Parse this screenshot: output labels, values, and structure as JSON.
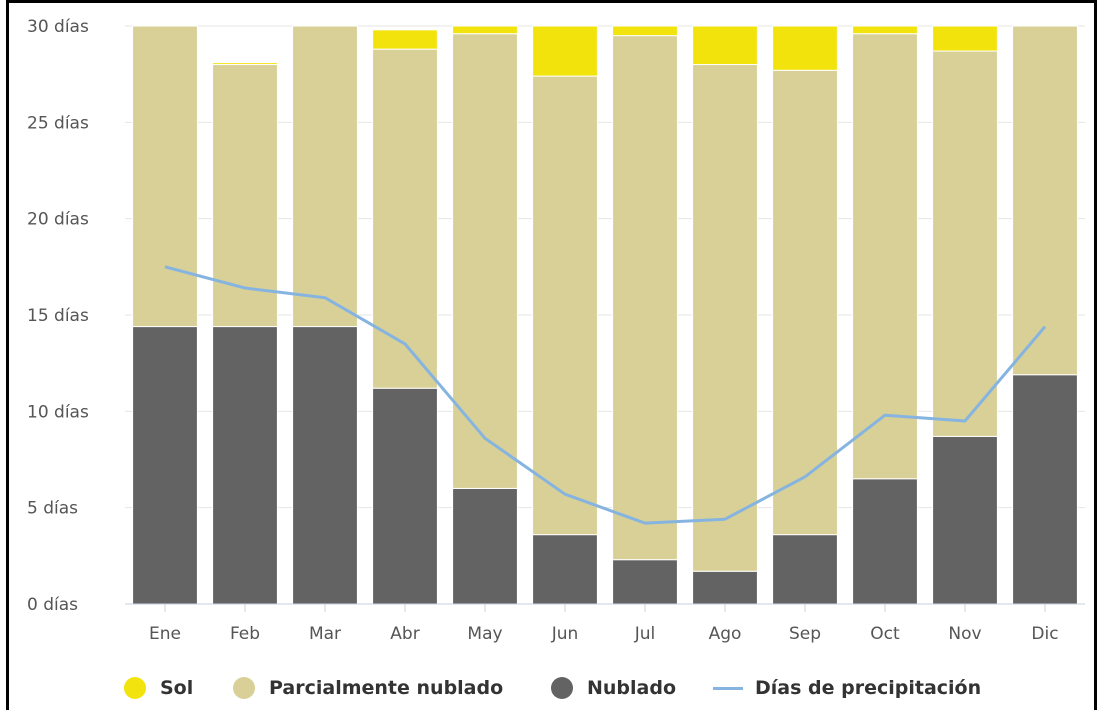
{
  "chart_data": {
    "type": "bar",
    "stacked": true,
    "categories": [
      "Ene",
      "Feb",
      "Mar",
      "Abr",
      "May",
      "Jun",
      "Jul",
      "Ago",
      "Sep",
      "Oct",
      "Nov",
      "Dic"
    ],
    "series": [
      {
        "name": "Nublado",
        "color": "#636363",
        "values": [
          14.4,
          14.4,
          14.4,
          11.2,
          6.0,
          3.6,
          2.3,
          1.7,
          3.6,
          6.5,
          8.7,
          11.9
        ]
      },
      {
        "name": "Parcialmente nublado",
        "color": "#d8d096",
        "values": [
          15.6,
          13.6,
          15.6,
          17.6,
          23.6,
          23.8,
          27.2,
          26.3,
          24.1,
          23.1,
          20.0,
          18.1
        ]
      },
      {
        "name": "Sol",
        "color": "#f2e30c",
        "values": [
          0.0,
          0.1,
          0.0,
          1.0,
          0.4,
          2.6,
          0.5,
          2.0,
          2.3,
          0.4,
          1.3,
          0.0
        ]
      }
    ],
    "line_series": {
      "name": "Días de precipitación",
      "color": "#86b4e0",
      "values": [
        17.5,
        16.4,
        15.9,
        13.5,
        8.6,
        5.7,
        4.2,
        4.4,
        6.6,
        9.8,
        9.5,
        14.4
      ]
    },
    "ylim": [
      0,
      30
    ],
    "yticks": [
      0,
      5,
      10,
      15,
      20,
      25,
      30
    ],
    "ytick_labels": [
      "0 días",
      "5 días",
      "10 días",
      "15 días",
      "20 días",
      "25 días",
      "30 días"
    ],
    "grid": true,
    "legend_position": "bottom",
    "legend": [
      "Sol",
      "Parcialmente nublado",
      "Nublado",
      "Días de precipitación"
    ]
  }
}
